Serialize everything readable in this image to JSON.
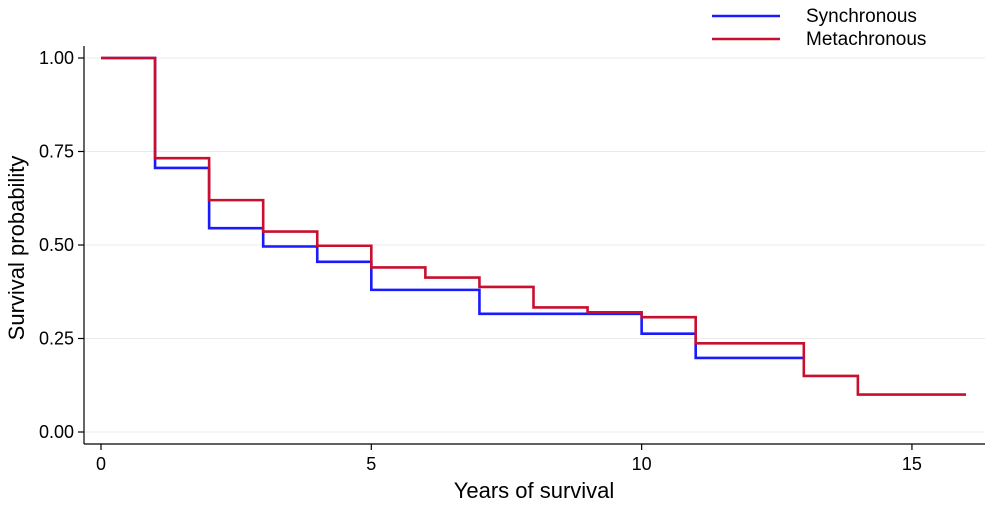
{
  "chart_data": {
    "type": "line",
    "step": true,
    "title": "",
    "xlabel": "Years of survival",
    "ylabel": "Survival probability",
    "xlim": [
      0,
      16
    ],
    "ylim": [
      0,
      1
    ],
    "x_ticks": [
      0,
      5,
      10,
      15
    ],
    "x_tick_labels": [
      "0",
      "5",
      "10",
      "15"
    ],
    "y_ticks": [
      0,
      0.25,
      0.5,
      0.75,
      1.0
    ],
    "y_tick_labels": [
      "0.00",
      "0.25",
      "0.50",
      "0.75",
      "1.00"
    ],
    "grid": "horizontal",
    "legend_position": "top-right",
    "series": [
      {
        "name": "Synchronous",
        "color": "#1a1aff",
        "x": [
          0,
          1,
          2,
          3,
          4,
          5,
          7,
          10,
          11,
          13
        ],
        "values": [
          1.0,
          0.706,
          0.545,
          0.496,
          0.455,
          0.38,
          0.316,
          0.263,
          0.198,
          0.198
        ]
      },
      {
        "name": "Metachronous",
        "color": "#c8102e",
        "x": [
          0,
          1,
          2,
          3,
          4,
          5,
          6,
          7,
          8,
          9,
          10,
          11,
          13,
          14,
          16
        ],
        "values": [
          1.0,
          0.732,
          0.62,
          0.536,
          0.498,
          0.44,
          0.413,
          0.388,
          0.333,
          0.32,
          0.307,
          0.237,
          0.15,
          0.1,
          0.1
        ]
      }
    ]
  }
}
